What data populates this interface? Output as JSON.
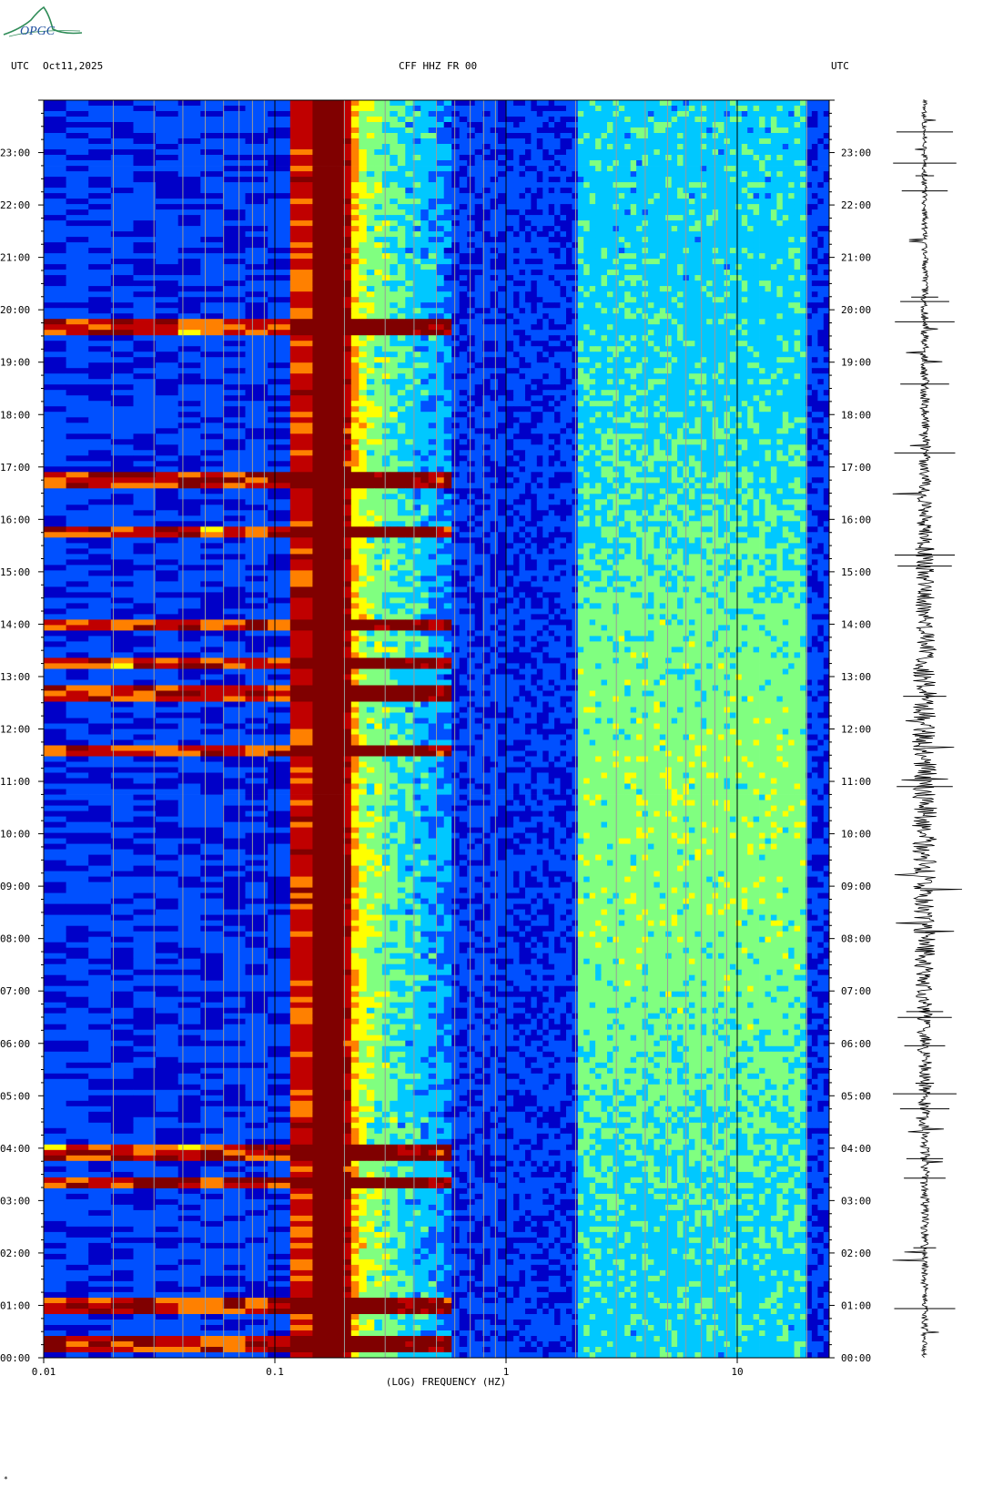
{
  "header": {
    "left_utc": "UTC",
    "date": "Oct11,2025",
    "station": "CFF HHZ FR 00",
    "right_utc": "UTC"
  },
  "logo": {
    "text": "OPGC"
  },
  "bottom_mark": "*",
  "chart_data": {
    "type": "heatmap",
    "title": "CFF HHZ FR 00",
    "xlabel": "(LOG) FREQUENCY (HZ)",
    "x_scale": "log",
    "xlim": [
      0.01,
      25
    ],
    "x_ticks": [
      0.01,
      0.1,
      1,
      10
    ],
    "x_tick_labels": [
      "0.01",
      "0.1",
      "1",
      "10"
    ],
    "ylim_hours": [
      0,
      24
    ],
    "y_tick_labels": [
      "00:00",
      "01:00",
      "02:00",
      "03:00",
      "04:00",
      "05:00",
      "06:00",
      "07:00",
      "08:00",
      "09:00",
      "10:00",
      "11:00",
      "12:00",
      "13:00",
      "14:00",
      "15:00",
      "16:00",
      "17:00",
      "18:00",
      "19:00",
      "20:00",
      "21:00",
      "22:00",
      "23:00"
    ],
    "colormap": [
      "#0000c8",
      "#0050ff",
      "#00c8ff",
      "#80ff80",
      "#ffff00",
      "#ff8000",
      "#c00000",
      "#800000"
    ],
    "microseism_peak_hz": 0.17,
    "secondary_band_hz": [
      0.13,
      0.6
    ],
    "high_freq_band_hz": [
      2,
      20
    ],
    "events_utc": [
      "00:15",
      "01:00",
      "03:20",
      "03:55",
      "11:35",
      "12:40",
      "13:15",
      "14:00",
      "15:45",
      "16:45",
      "19:40"
    ],
    "seismogram": {
      "component": "HHZ",
      "span_hours": 24
    }
  }
}
